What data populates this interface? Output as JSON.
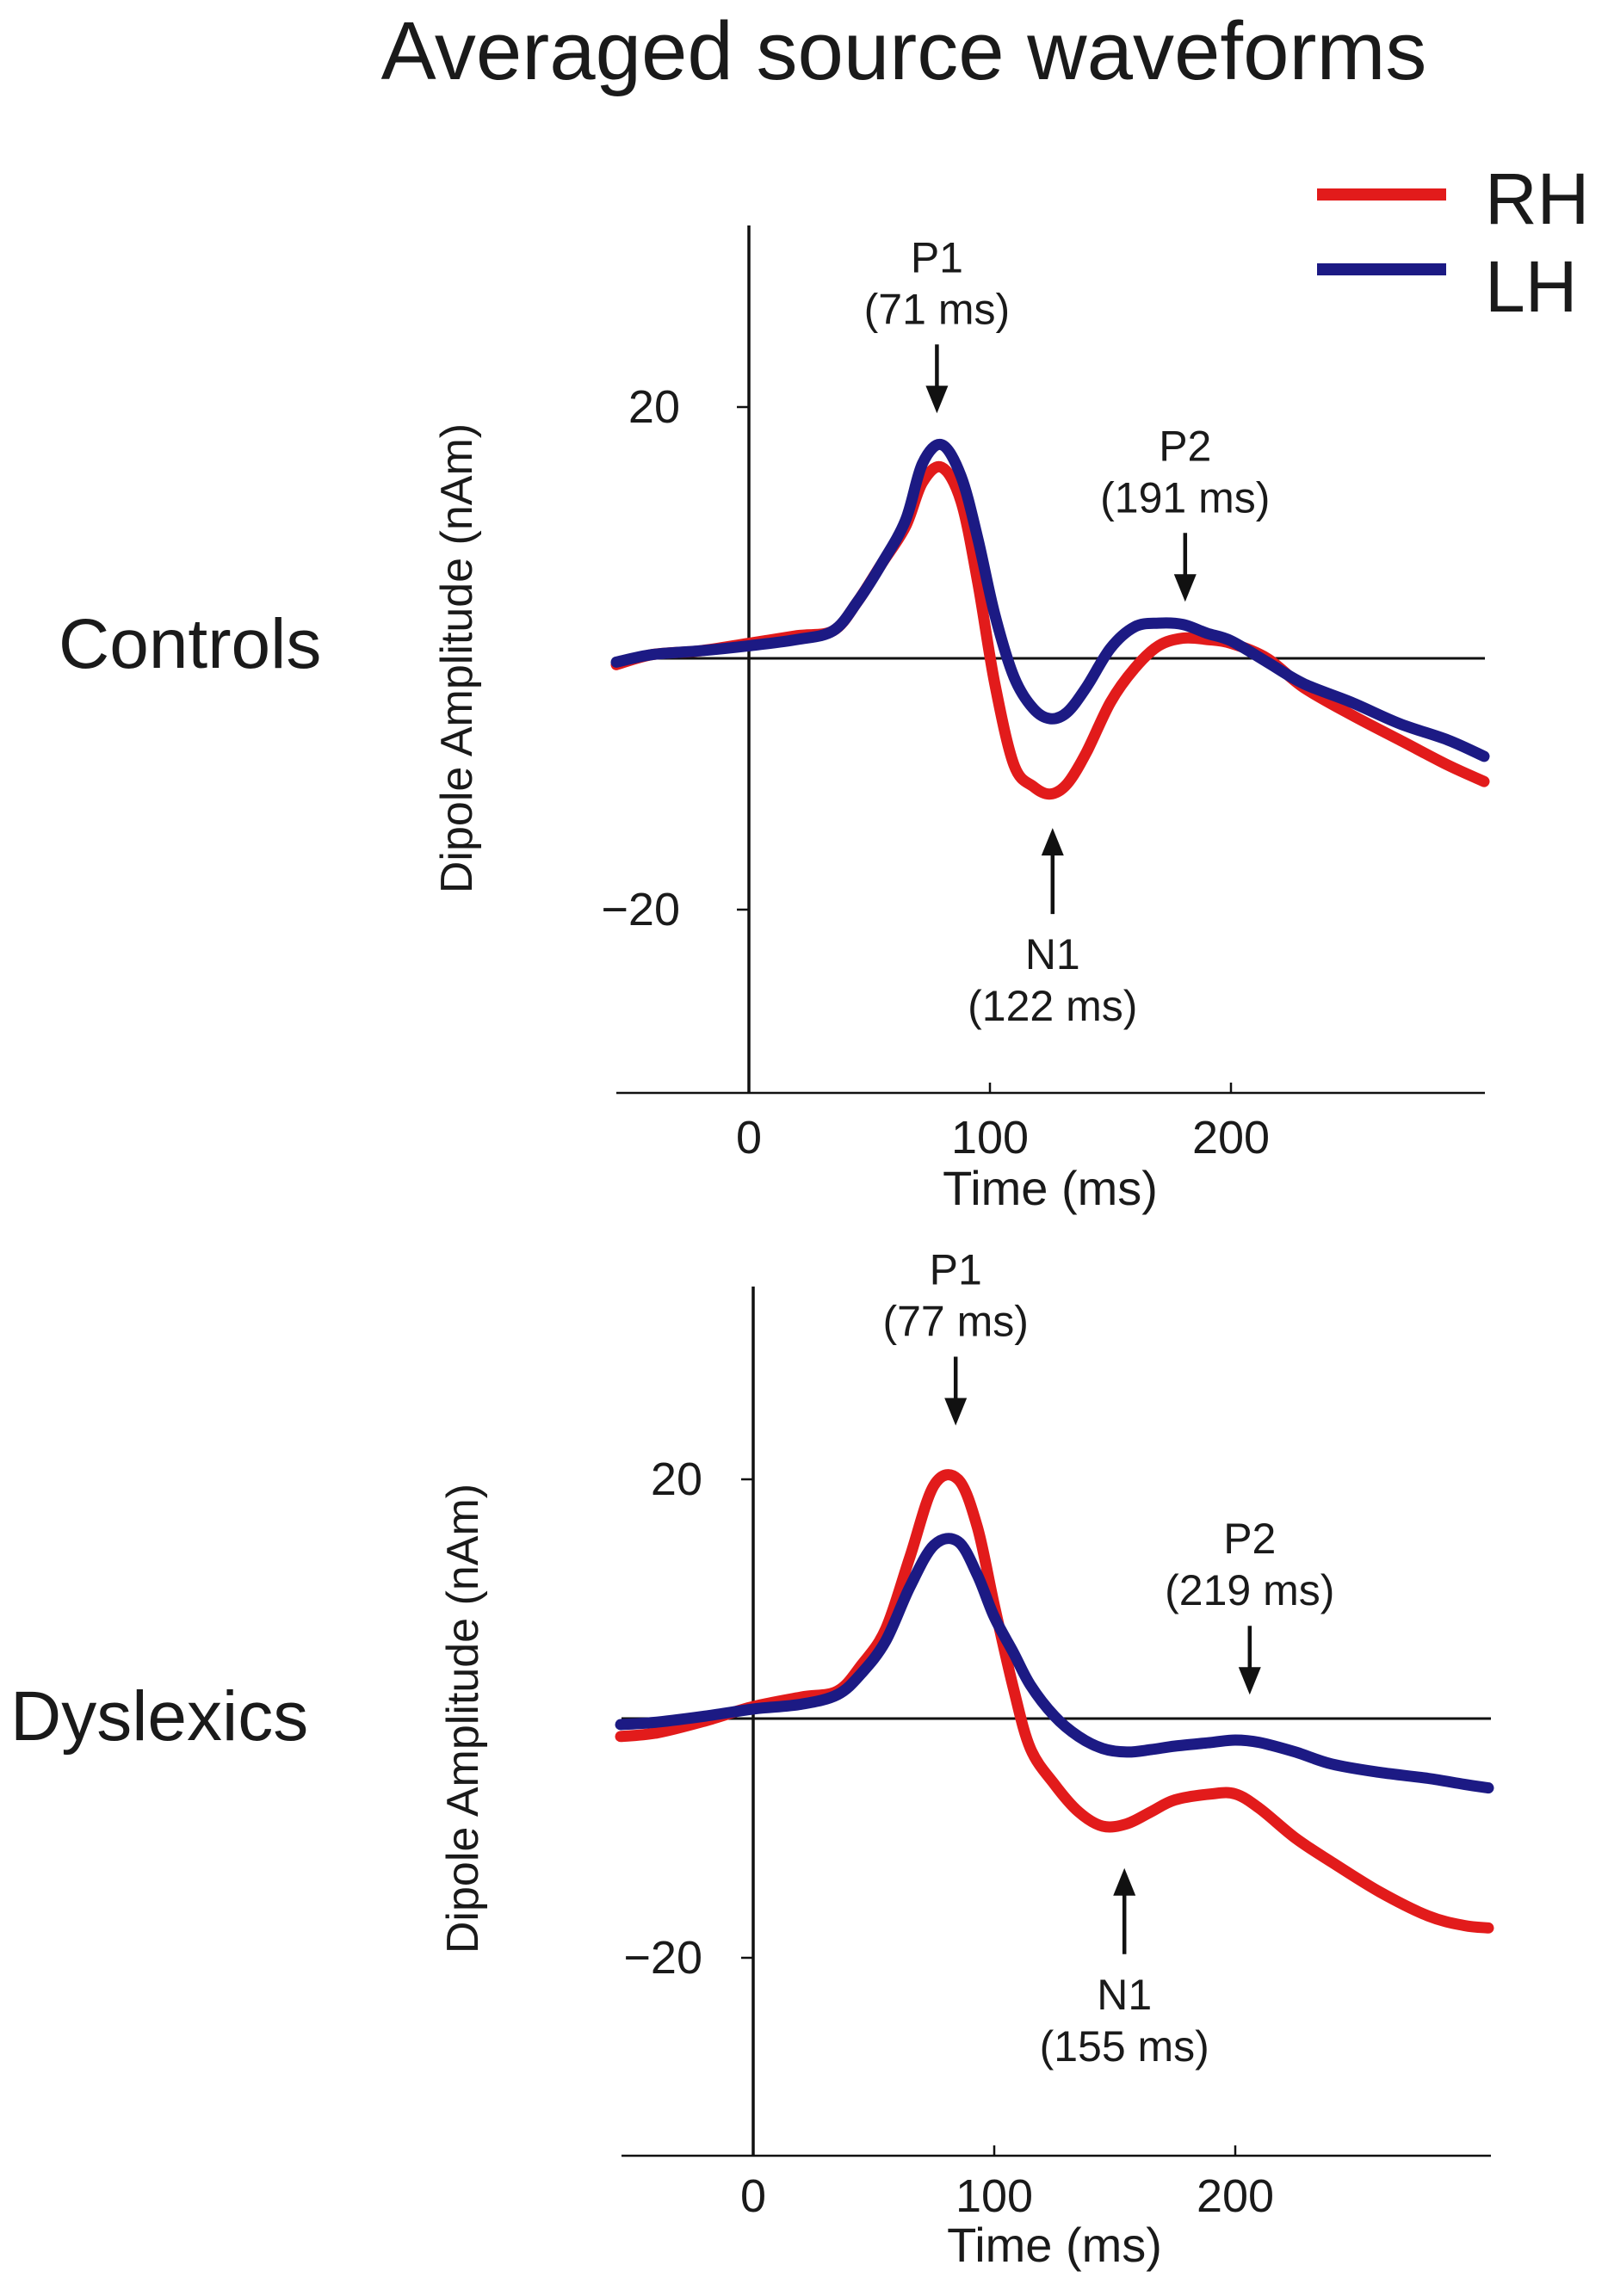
{
  "figure": {
    "title": "Averaged source waveforms",
    "legend": {
      "placement": "top-right",
      "entries": [
        {
          "label": "RH",
          "color": "#e21b1b"
        },
        {
          "label": "LH",
          "color": "#1c1a84"
        }
      ]
    }
  },
  "chart_data": [
    {
      "type": "line",
      "group_label": "Controls",
      "xlabel": "Time (ms)",
      "ylabel": "Dipole Amplitude (nAm)",
      "xlim": [
        -55,
        305
      ],
      "ylim": [
        -35,
        35
      ],
      "x_ticks": [
        0,
        100,
        200
      ],
      "y_ticks": [
        20,
        -20
      ],
      "x_tick_labels": [
        "0",
        "100",
        "200"
      ],
      "y_tick_labels": [
        "20",
        "−20"
      ],
      "series": [
        {
          "name": "RH",
          "color": "#e21b1b",
          "x": [
            -55,
            -40,
            -20,
            0,
            20,
            35,
            45,
            55,
            65,
            72,
            80,
            88,
            95,
            102,
            110,
            118,
            125,
            132,
            140,
            150,
            160,
            170,
            180,
            190,
            200,
            215,
            230,
            250,
            270,
            290,
            305
          ],
          "y": [
            -0.5,
            0.3,
            0.6,
            1.2,
            1.8,
            2.2,
            4.5,
            7.5,
            10.5,
            14.0,
            15.2,
            12.5,
            6.0,
            -2.0,
            -8.5,
            -10.2,
            -10.8,
            -10.0,
            -7.5,
            -3.5,
            -0.8,
            1.0,
            1.6,
            1.5,
            1.2,
            0.0,
            -2.3,
            -4.5,
            -6.5,
            -8.5,
            -9.8
          ]
        },
        {
          "name": "LH",
          "color": "#1c1a84",
          "x": [
            -55,
            -40,
            -20,
            0,
            20,
            35,
            45,
            55,
            65,
            72,
            80,
            88,
            95,
            102,
            110,
            118,
            125,
            132,
            140,
            150,
            160,
            170,
            180,
            190,
            200,
            215,
            230,
            250,
            270,
            290,
            305
          ],
          "y": [
            -0.3,
            0.3,
            0.6,
            1.0,
            1.5,
            2.2,
            4.5,
            7.5,
            11.0,
            15.5,
            17.0,
            14.5,
            9.5,
            3.5,
            -1.5,
            -4.0,
            -4.8,
            -4.3,
            -2.3,
            0.8,
            2.5,
            2.8,
            2.7,
            2.0,
            1.4,
            -0.3,
            -2.0,
            -3.5,
            -5.2,
            -6.5,
            -7.8
          ]
        }
      ],
      "annotations": [
        {
          "name": "P1",
          "time_label": "(71 ms)",
          "x": 78,
          "target_y": 19.5,
          "direction": "down"
        },
        {
          "name": "N1",
          "time_label": "(122 ms)",
          "x": 126,
          "target_y": -13.5,
          "direction": "up"
        },
        {
          "name": "P2",
          "time_label": "(191 ms)",
          "x": 181,
          "target_y": 4.5,
          "direction": "down"
        }
      ]
    },
    {
      "type": "line",
      "group_label": "Dyslexics",
      "xlabel": "Time (ms)",
      "ylabel": "Dipole Amplitude (nAm)",
      "xlim": [
        -55,
        305
      ],
      "ylim": [
        -35,
        35
      ],
      "x_ticks": [
        0,
        100,
        200
      ],
      "y_ticks": [
        20,
        -20
      ],
      "x_tick_labels": [
        "0",
        "100",
        "200"
      ],
      "y_tick_labels": [
        "20",
        "−20"
      ],
      "series": [
        {
          "name": "RH",
          "color": "#e21b1b",
          "x": [
            -55,
            -40,
            -20,
            0,
            20,
            35,
            45,
            55,
            65,
            75,
            85,
            93,
            100,
            108,
            115,
            125,
            135,
            145,
            155,
            165,
            175,
            190,
            200,
            210,
            225,
            240,
            260,
            280,
            295,
            305
          ],
          "y": [
            -1.5,
            -1.2,
            -0.2,
            1.0,
            1.8,
            2.3,
            4.5,
            7.5,
            13.5,
            19.5,
            20.0,
            16.0,
            9.5,
            2.5,
            -2.5,
            -5.5,
            -7.8,
            -9.0,
            -8.8,
            -7.8,
            -6.8,
            -6.3,
            -6.3,
            -7.5,
            -10.0,
            -12.0,
            -14.5,
            -16.5,
            -17.3,
            -17.5
          ]
        },
        {
          "name": "LH",
          "color": "#1c1a84",
          "x": [
            -55,
            -40,
            -20,
            0,
            20,
            35,
            45,
            55,
            65,
            75,
            85,
            93,
            100,
            108,
            115,
            125,
            135,
            145,
            155,
            165,
            175,
            190,
            200,
            210,
            225,
            240,
            260,
            280,
            295,
            305
          ],
          "y": [
            -0.5,
            -0.3,
            0.2,
            0.8,
            1.2,
            2.0,
            3.8,
            6.5,
            11.0,
            14.5,
            14.8,
            12.0,
            8.5,
            5.5,
            2.8,
            0.2,
            -1.5,
            -2.5,
            -2.8,
            -2.6,
            -2.3,
            -2.0,
            -1.8,
            -2.0,
            -2.8,
            -3.8,
            -4.5,
            -5.0,
            -5.5,
            -5.8
          ]
        }
      ],
      "annotations": [
        {
          "name": "P1",
          "time_label": "(77 ms)",
          "x": 84,
          "target_y": 24.5,
          "direction": "down"
        },
        {
          "name": "N1",
          "time_label": "(155 ms)",
          "x": 154,
          "target_y": -12.5,
          "direction": "up"
        },
        {
          "name": "P2",
          "time_label": "(219 ms)",
          "x": 206,
          "target_y": 2.0,
          "direction": "down"
        }
      ]
    }
  ]
}
